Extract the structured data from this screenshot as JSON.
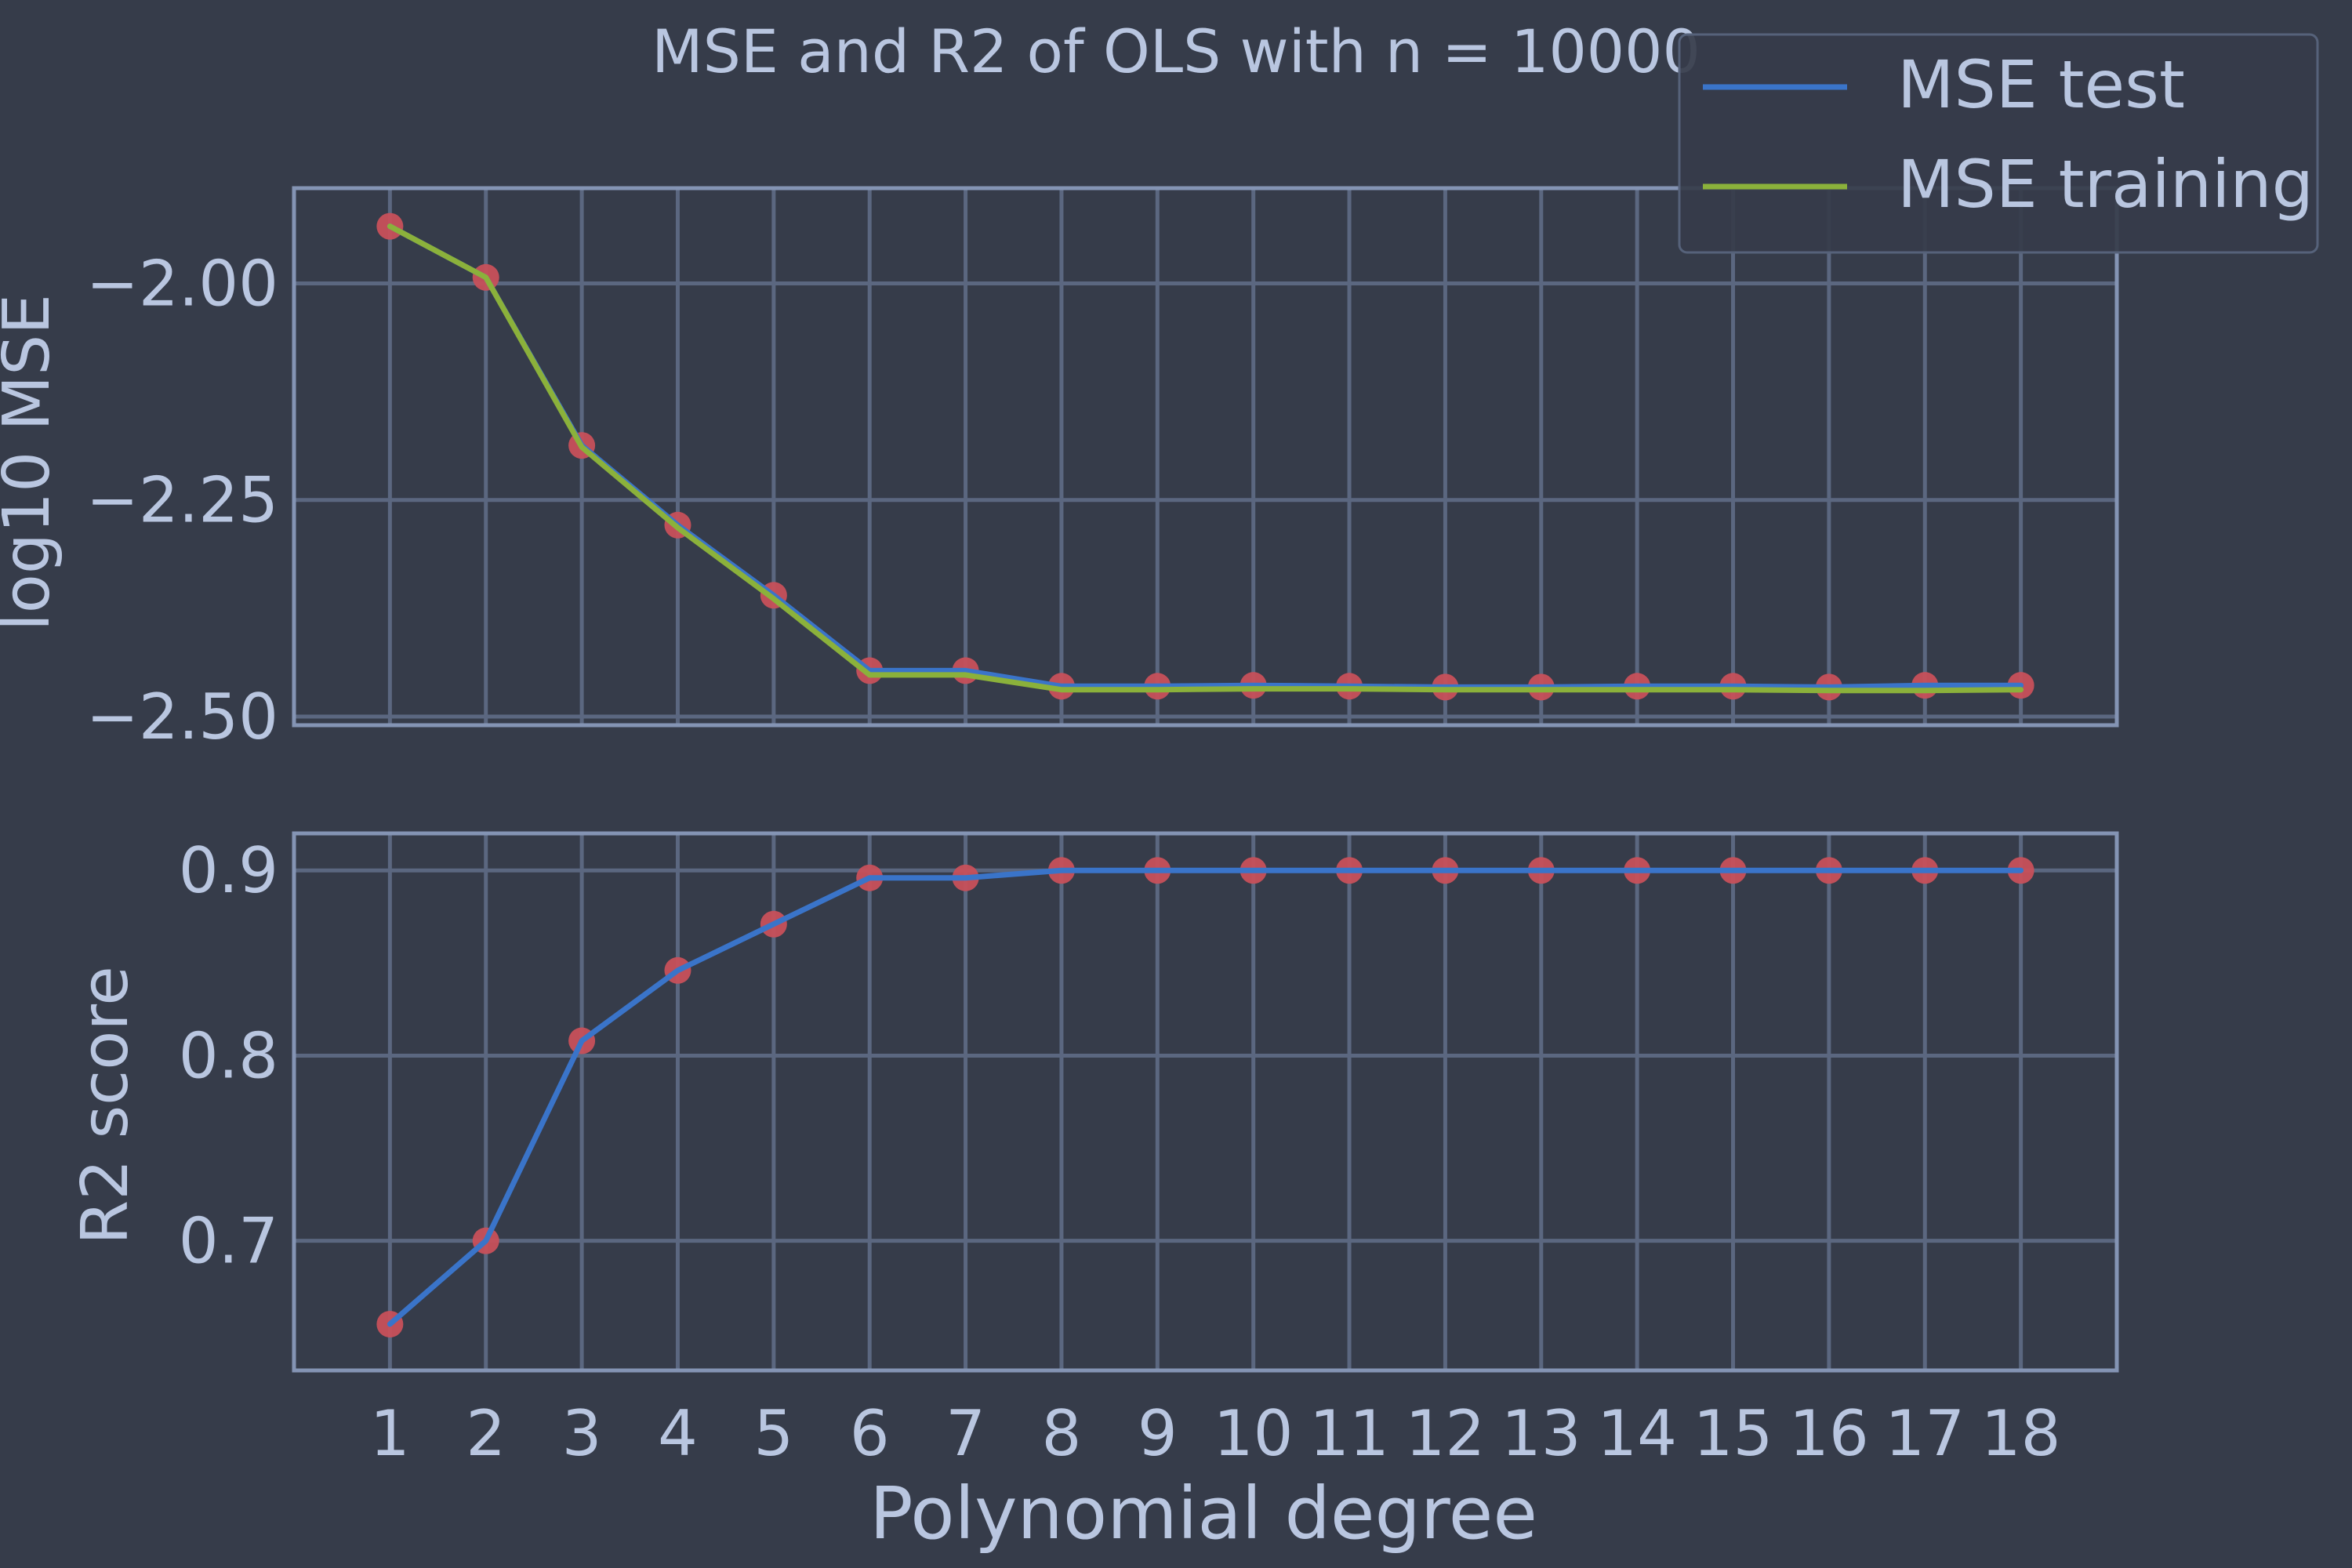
{
  "title": "MSE and R2 of OLS with n = 10000",
  "colors": {
    "background": "#363c4a",
    "grid": "#5b6780",
    "spine": "#8494b4",
    "text": "#b9c6e0",
    "mse_test": "#3a74c9",
    "mse_training": "#8bb13b",
    "markers": "#c8505a",
    "legend_bg": "#363c4a",
    "legend_border": "#56627a"
  },
  "legend": {
    "placement": "top-right",
    "entries": [
      "MSE test",
      "MSE training"
    ]
  },
  "chart_data": [
    {
      "type": "line",
      "title": "MSE and R2 of OLS with n = 10000",
      "xlabel": "",
      "ylabel": "log10 MSE",
      "x": [
        1,
        2,
        3,
        4,
        5,
        6,
        7,
        8,
        9,
        10,
        11,
        12,
        13,
        14,
        15,
        16,
        17,
        18
      ],
      "xlim": [
        0,
        19
      ],
      "ylim": [
        -2.51,
        -1.89
      ],
      "yticks": [
        -2.0,
        -2.25,
        -2.5
      ],
      "ytick_labels": [
        "−2.00",
        "−2.25",
        "−2.50"
      ],
      "grid": true,
      "series": [
        {
          "name": "MSE test",
          "color": "#3a74c9",
          "marker": true,
          "values": [
            -1.934,
            -1.993,
            -2.187,
            -2.279,
            -2.36,
            -2.447,
            -2.447,
            -2.465,
            -2.465,
            -2.464,
            -2.465,
            -2.466,
            -2.466,
            -2.465,
            -2.465,
            -2.466,
            -2.464,
            -2.464
          ]
        },
        {
          "name": "MSE training",
          "color": "#8bb13b",
          "marker": false,
          "values": [
            -1.934,
            -1.993,
            -2.189,
            -2.282,
            -2.364,
            -2.452,
            -2.452,
            -2.469,
            -2.469,
            -2.468,
            -2.468,
            -2.469,
            -2.469,
            -2.469,
            -2.469,
            -2.47,
            -2.47,
            -2.469
          ]
        }
      ]
    },
    {
      "type": "line",
      "xlabel": "Polynomial degree",
      "ylabel": "R2 score",
      "x": [
        1,
        2,
        3,
        4,
        5,
        6,
        7,
        8,
        9,
        10,
        11,
        12,
        13,
        14,
        15,
        16,
        17,
        18
      ],
      "xlim": [
        0,
        19
      ],
      "ylim": [
        0.63,
        0.92
      ],
      "yticks": [
        0.7,
        0.8,
        0.9
      ],
      "ytick_labels": [
        "0.7",
        "0.8",
        "0.9"
      ],
      "xtick_labels": [
        "1",
        "2",
        "3",
        "4",
        "5",
        "6",
        "7",
        "8",
        "9",
        "10",
        "11",
        "12",
        "13",
        "14",
        "15",
        "16",
        "17",
        "18"
      ],
      "grid": true,
      "series": [
        {
          "color": "#3a74c9",
          "marker": true,
          "values": [
            0.655,
            0.7,
            0.808,
            0.846,
            0.871,
            0.896,
            0.896,
            0.9,
            0.9,
            0.9,
            0.9,
            0.9,
            0.9,
            0.9,
            0.9,
            0.9,
            0.9,
            0.9
          ]
        }
      ]
    }
  ]
}
